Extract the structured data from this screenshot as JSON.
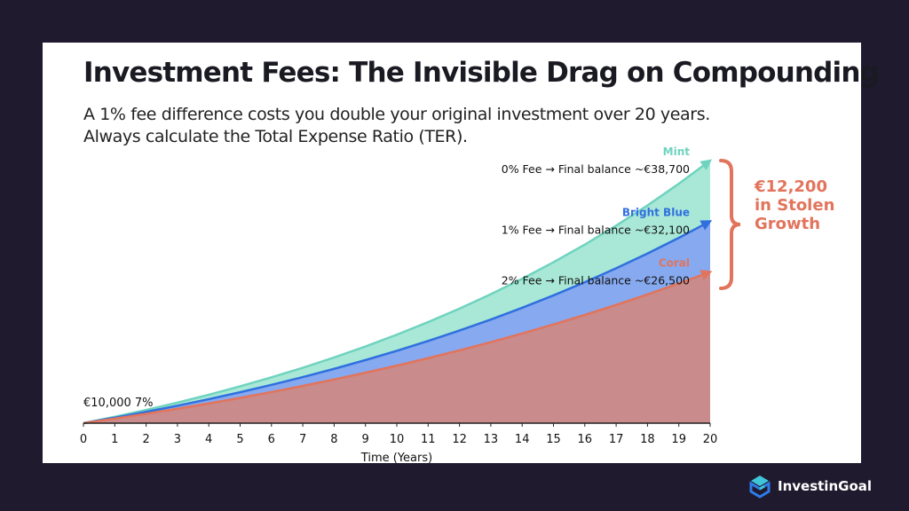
{
  "header": {
    "title": "Investment Fees: The Invisible Drag on Compounding",
    "subtitle_line1": "A 1% fee difference costs you double your original investment over 20 years.",
    "subtitle_line2": "Always calculate the Total Expense Ratio (TER)."
  },
  "chart_data": {
    "type": "area",
    "xlabel": "Time (Years)",
    "x": [
      0,
      1,
      2,
      3,
      4,
      5,
      6,
      7,
      8,
      9,
      10,
      11,
      12,
      13,
      14,
      15,
      16,
      17,
      18,
      19,
      20
    ],
    "xlim": [
      0,
      20
    ],
    "grid": false,
    "series": [
      {
        "name": "Mint",
        "color": "#6fd3bf",
        "fill": "#a9e8d6",
        "label": "0% Fee → Final balance ~€38,700",
        "values": [
          10000,
          10700,
          11449,
          12250,
          13108,
          14026,
          15007,
          16058,
          17182,
          18385,
          19672,
          21049,
          22522,
          24098,
          25785,
          27590,
          29522,
          31588,
          33799,
          36165,
          38697
        ]
      },
      {
        "name": "Bright Blue",
        "color": "#2f6fdf",
        "fill": "#86a9ef",
        "label": "1% Fee → Final balance ~€32,100",
        "values": [
          10000,
          10600,
          11236,
          11910,
          12625,
          13382,
          14185,
          15036,
          15938,
          16895,
          17908,
          18983,
          20122,
          21329,
          22609,
          23966,
          25404,
          26928,
          28543,
          30256,
          32071
        ]
      },
      {
        "name": "Coral",
        "color": "#e2745c",
        "fill": "#c98b8b",
        "label": "2% Fee → Final balance ~€26,500",
        "values": [
          10000,
          10500,
          11025,
          11576,
          12155,
          12763,
          13401,
          14071,
          14775,
          15513,
          16289,
          17103,
          17959,
          18856,
          19799,
          20789,
          21829,
          22920,
          24066,
          25270,
          26533
        ]
      }
    ],
    "start_annotation": "€10,000 7%",
    "brace_annotation": [
      "€12,200",
      "in Stolen",
      "Growth"
    ],
    "brace_color": "#e2745c"
  },
  "brand": {
    "name": "InvestinGoal"
  }
}
